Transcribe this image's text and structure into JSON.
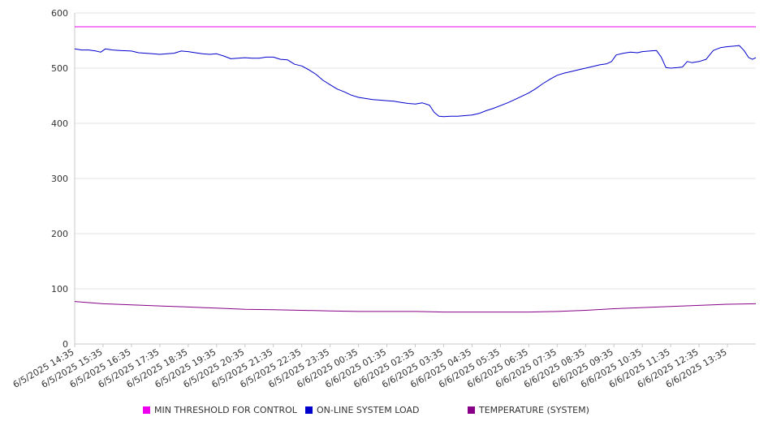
{
  "chart_data": {
    "type": "line",
    "title": "",
    "xlabel": "",
    "ylabel": "",
    "ylim": [
      0,
      600
    ],
    "y_ticks": [
      0,
      100,
      200,
      300,
      400,
      500,
      600
    ],
    "grid": "horizontal",
    "legend_position": "bottom",
    "x_tick_labels": [
      "6/5/2025 14:35",
      "6/5/2025 15:35",
      "6/5/2025 16:35",
      "6/5/2025 17:35",
      "6/5/2025 18:35",
      "6/5/2025 19:35",
      "6/5/2025 20:35",
      "6/5/2025 21:35",
      "6/5/2025 22:35",
      "6/5/2025 23:35",
      "6/6/2025 00:35",
      "6/6/2025 01:35",
      "6/6/2025 02:35",
      "6/6/2025 03:35",
      "6/6/2025 04:35",
      "6/6/2025 05:35",
      "6/6/2025 06:35",
      "6/6/2025 07:35",
      "6/6/2025 08:35",
      "6/6/2025 09:35",
      "6/6/2025 10:35",
      "6/6/2025 11:35",
      "6/6/2025 12:35",
      "6/6/2025 13:35"
    ],
    "x_range": [
      "6/5/2025 14:35",
      "6/6/2025 14:35"
    ],
    "series": [
      {
        "name": "MIN THRESHOLD FOR CONTROL",
        "color": "#ee00ee",
        "points": [
          [
            "6/5/2025 14:35",
            575
          ],
          [
            "6/6/2025 14:35",
            575
          ]
        ]
      },
      {
        "name": "ON-LINE SYSTEM LOAD",
        "color": "#0000cc",
        "points": [
          [
            "6/5/2025 14:35",
            535
          ],
          [
            "6/5/2025 14:50",
            533
          ],
          [
            "6/5/2025 15:05",
            533
          ],
          [
            "6/5/2025 15:20",
            531
          ],
          [
            "6/5/2025 15:30",
            529
          ],
          [
            "6/5/2025 15:40",
            535
          ],
          [
            "6/5/2025 15:55",
            533
          ],
          [
            "6/5/2025 16:10",
            532
          ],
          [
            "6/5/2025 16:35",
            531
          ],
          [
            "6/5/2025 16:50",
            528
          ],
          [
            "6/5/2025 17:05",
            527
          ],
          [
            "6/5/2025 17:20",
            526
          ],
          [
            "6/5/2025 17:35",
            525
          ],
          [
            "6/5/2025 17:50",
            526
          ],
          [
            "6/5/2025 18:05",
            527
          ],
          [
            "6/5/2025 18:20",
            531
          ],
          [
            "6/5/2025 18:35",
            530
          ],
          [
            "6/5/2025 18:50",
            528
          ],
          [
            "6/5/2025 19:05",
            526
          ],
          [
            "6/5/2025 19:20",
            525
          ],
          [
            "6/5/2025 19:35",
            526
          ],
          [
            "6/5/2025 19:50",
            522
          ],
          [
            "6/5/2025 20:05",
            517
          ],
          [
            "6/5/2025 20:20",
            518
          ],
          [
            "6/5/2025 20:35",
            519
          ],
          [
            "6/5/2025 20:50",
            518
          ],
          [
            "6/5/2025 21:05",
            518
          ],
          [
            "6/5/2025 21:20",
            520
          ],
          [
            "6/5/2025 21:35",
            520
          ],
          [
            "6/5/2025 21:50",
            516
          ],
          [
            "6/5/2025 22:05",
            515
          ],
          [
            "6/5/2025 22:20",
            507
          ],
          [
            "6/5/2025 22:35",
            504
          ],
          [
            "6/5/2025 22:50",
            497
          ],
          [
            "6/5/2025 23:05",
            489
          ],
          [
            "6/5/2025 23:20",
            478
          ],
          [
            "6/5/2025 23:35",
            470
          ],
          [
            "6/5/2025 23:50",
            462
          ],
          [
            "6/6/2025 00:05",
            457
          ],
          [
            "6/6/2025 00:20",
            451
          ],
          [
            "6/6/2025 00:35",
            447
          ],
          [
            "6/6/2025 00:50",
            445
          ],
          [
            "6/6/2025 01:05",
            443
          ],
          [
            "6/6/2025 01:20",
            442
          ],
          [
            "6/6/2025 01:35",
            441
          ],
          [
            "6/6/2025 01:50",
            440
          ],
          [
            "6/6/2025 02:05",
            438
          ],
          [
            "6/6/2025 02:20",
            436
          ],
          [
            "6/6/2025 02:35",
            435
          ],
          [
            "6/6/2025 02:50",
            437
          ],
          [
            "6/6/2025 03:05",
            433
          ],
          [
            "6/6/2025 03:15",
            420
          ],
          [
            "6/6/2025 03:25",
            413
          ],
          [
            "6/6/2025 03:35",
            412
          ],
          [
            "6/6/2025 03:50",
            413
          ],
          [
            "6/6/2025 04:05",
            413
          ],
          [
            "6/6/2025 04:20",
            414
          ],
          [
            "6/6/2025 04:35",
            415
          ],
          [
            "6/6/2025 04:50",
            418
          ],
          [
            "6/6/2025 05:05",
            423
          ],
          [
            "6/6/2025 05:20",
            427
          ],
          [
            "6/6/2025 05:35",
            432
          ],
          [
            "6/6/2025 05:50",
            437
          ],
          [
            "6/6/2025 06:05",
            443
          ],
          [
            "6/6/2025 06:20",
            449
          ],
          [
            "6/6/2025 06:35",
            455
          ],
          [
            "6/6/2025 06:50",
            463
          ],
          [
            "6/6/2025 07:05",
            472
          ],
          [
            "6/6/2025 07:20",
            480
          ],
          [
            "6/6/2025 07:35",
            487
          ],
          [
            "6/6/2025 07:50",
            491
          ],
          [
            "6/6/2025 08:05",
            494
          ],
          [
            "6/6/2025 08:20",
            497
          ],
          [
            "6/6/2025 08:35",
            500
          ],
          [
            "6/6/2025 08:50",
            503
          ],
          [
            "6/6/2025 09:05",
            506
          ],
          [
            "6/6/2025 09:20",
            508
          ],
          [
            "6/6/2025 09:30",
            512
          ],
          [
            "6/6/2025 09:40",
            524
          ],
          [
            "6/6/2025 09:55",
            527
          ],
          [
            "6/6/2025 10:10",
            529
          ],
          [
            "6/6/2025 10:25",
            528
          ],
          [
            "6/6/2025 10:35",
            530
          ],
          [
            "6/6/2025 10:50",
            531
          ],
          [
            "6/6/2025 11:05",
            532
          ],
          [
            "6/6/2025 11:15",
            520
          ],
          [
            "6/6/2025 11:25",
            501
          ],
          [
            "6/6/2025 11:35",
            500
          ],
          [
            "6/6/2025 11:50",
            501
          ],
          [
            "6/6/2025 12:00",
            502
          ],
          [
            "6/6/2025 12:10",
            512
          ],
          [
            "6/6/2025 12:20",
            510
          ],
          [
            "6/6/2025 12:35",
            512
          ],
          [
            "6/6/2025 12:50",
            516
          ],
          [
            "6/6/2025 13:05",
            532
          ],
          [
            "6/6/2025 13:20",
            537
          ],
          [
            "6/6/2025 13:35",
            539
          ],
          [
            "6/6/2025 13:50",
            540
          ],
          [
            "6/6/2025 14:00",
            541
          ],
          [
            "6/6/2025 14:10",
            532
          ],
          [
            "6/6/2025 14:20",
            519
          ],
          [
            "6/6/2025 14:28",
            516
          ],
          [
            "6/6/2025 14:35",
            519
          ]
        ]
      },
      {
        "name": "TEMPERATURE (SYSTEM)",
        "color": "#880088",
        "points": [
          [
            "6/5/2025 14:35",
            77
          ],
          [
            "6/5/2025 15:35",
            73
          ],
          [
            "6/5/2025 16:35",
            71
          ],
          [
            "6/5/2025 17:35",
            69
          ],
          [
            "6/5/2025 18:35",
            67
          ],
          [
            "6/5/2025 19:35",
            65
          ],
          [
            "6/5/2025 20:35",
            63
          ],
          [
            "6/5/2025 21:35",
            62
          ],
          [
            "6/5/2025 22:35",
            61
          ],
          [
            "6/5/2025 23:35",
            60
          ],
          [
            "6/6/2025 00:35",
            59
          ],
          [
            "6/6/2025 01:35",
            59
          ],
          [
            "6/6/2025 02:35",
            59
          ],
          [
            "6/6/2025 03:35",
            58
          ],
          [
            "6/6/2025 04:35",
            58
          ],
          [
            "6/6/2025 05:35",
            58
          ],
          [
            "6/6/2025 06:35",
            58
          ],
          [
            "6/6/2025 07:35",
            59
          ],
          [
            "6/6/2025 08:35",
            61
          ],
          [
            "6/6/2025 09:35",
            64
          ],
          [
            "6/6/2025 10:35",
            66
          ],
          [
            "6/6/2025 11:35",
            68
          ],
          [
            "6/6/2025 12:35",
            70
          ],
          [
            "6/6/2025 13:35",
            72
          ],
          [
            "6/6/2025 14:35",
            73
          ]
        ]
      }
    ]
  }
}
